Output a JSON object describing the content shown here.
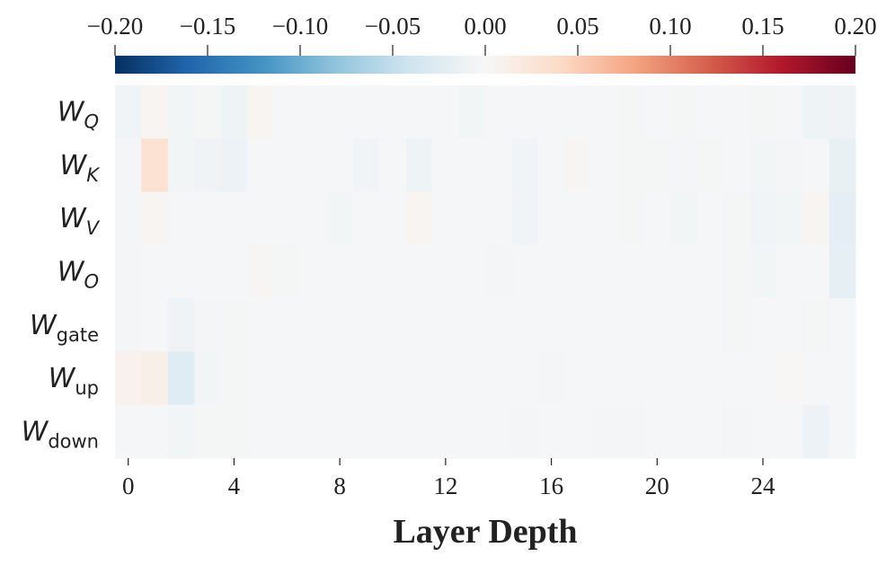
{
  "chart_data": {
    "type": "heatmap",
    "x_label": "Layer Depth",
    "y_categories": [
      [
        "W",
        "Q"
      ],
      [
        "W",
        "K"
      ],
      [
        "W",
        "V"
      ],
      [
        "W",
        "O"
      ],
      [
        "W",
        "gate"
      ],
      [
        "W",
        "up"
      ],
      [
        "W",
        "down"
      ]
    ],
    "xlim": [
      -0.5,
      27.5
    ],
    "xticks": [
      0,
      4,
      8,
      12,
      16,
      20,
      24
    ],
    "clim": [
      -0.2,
      0.2
    ],
    "cticks": [
      {
        "value": -0.2,
        "label": "−0.20"
      },
      {
        "value": -0.15,
        "label": "−0.15"
      },
      {
        "value": -0.1,
        "label": "−0.10"
      },
      {
        "value": -0.05,
        "label": "−0.05"
      },
      {
        "value": 0,
        "label": "0.00"
      },
      0.05,
      {
        "value": 0.1,
        "label": "0.10"
      },
      0.15,
      {
        "value": 0.2,
        "label": "0.20"
      }
    ],
    "colormap": [
      "#053061",
      "#2166ac",
      "#4393c3",
      "#92c5de",
      "#d1e5f0",
      "#f7f7f7",
      "#fddbc7",
      "#f4a582",
      "#d6604d",
      "#b2182b",
      "#67001f"
    ],
    "values": [
      [
        -0.006,
        0.004,
        -0.005,
        -0.003,
        -0.009,
        0.004,
        -0.002,
        -0.002,
        -0.002,
        -0.002,
        -0.002,
        -0.002,
        -0.002,
        -0.005,
        -0.002,
        -0.002,
        -0.002,
        -0.002,
        -0.002,
        -0.003,
        -0.002,
        -0.003,
        -0.002,
        -0.002,
        -0.003,
        -0.002,
        -0.01,
        -0.008
      ],
      [
        -0.004,
        0.03,
        -0.005,
        -0.008,
        -0.012,
        -0.002,
        -0.002,
        -0.002,
        -0.002,
        -0.007,
        -0.002,
        -0.01,
        -0.002,
        -0.002,
        -0.002,
        -0.006,
        -0.002,
        0.003,
        -0.002,
        -0.003,
        -0.003,
        -0.004,
        -0.003,
        -0.002,
        -0.005,
        -0.004,
        -0.002,
        -0.015
      ],
      [
        -0.004,
        0.004,
        -0.002,
        -0.002,
        -0.002,
        -0.002,
        -0.002,
        -0.002,
        -0.005,
        -0.002,
        -0.002,
        0.005,
        -0.002,
        -0.002,
        -0.002,
        -0.006,
        -0.002,
        -0.002,
        -0.002,
        -0.003,
        -0.002,
        -0.005,
        -0.002,
        -0.003,
        -0.007,
        -0.005,
        0.004,
        -0.02
      ],
      [
        -0.004,
        -0.002,
        -0.002,
        -0.002,
        -0.002,
        0.003,
        -0.003,
        -0.002,
        -0.002,
        -0.002,
        -0.002,
        -0.002,
        -0.002,
        -0.002,
        -0.004,
        -0.002,
        -0.002,
        -0.002,
        -0.002,
        -0.002,
        -0.002,
        -0.002,
        -0.002,
        -0.003,
        -0.005,
        -0.002,
        -0.002,
        -0.018
      ],
      [
        -0.004,
        -0.002,
        -0.008,
        -0.004,
        -0.003,
        -0.002,
        -0.002,
        -0.002,
        -0.002,
        -0.002,
        -0.002,
        -0.002,
        -0.002,
        -0.002,
        -0.002,
        -0.002,
        -0.002,
        -0.002,
        -0.002,
        -0.002,
        -0.002,
        -0.002,
        -0.002,
        -0.003,
        -0.002,
        -0.002,
        -0.003,
        -0.002
      ],
      [
        0.008,
        0.012,
        -0.025,
        -0.005,
        -0.003,
        -0.002,
        -0.002,
        -0.002,
        -0.002,
        -0.002,
        -0.002,
        -0.002,
        -0.002,
        -0.002,
        -0.002,
        -0.002,
        -0.004,
        -0.002,
        -0.002,
        -0.002,
        -0.002,
        -0.002,
        -0.002,
        -0.002,
        -0.002,
        0.002,
        -0.002,
        -0.002
      ],
      [
        -0.002,
        -0.002,
        -0.005,
        -0.003,
        -0.003,
        -0.002,
        -0.002,
        -0.002,
        -0.002,
        -0.002,
        -0.002,
        -0.002,
        -0.002,
        -0.002,
        -0.002,
        -0.004,
        -0.002,
        -0.002,
        -0.004,
        -0.004,
        -0.002,
        -0.002,
        -0.002,
        -0.004,
        -0.002,
        -0.002,
        -0.012,
        -0.002
      ]
    ]
  }
}
